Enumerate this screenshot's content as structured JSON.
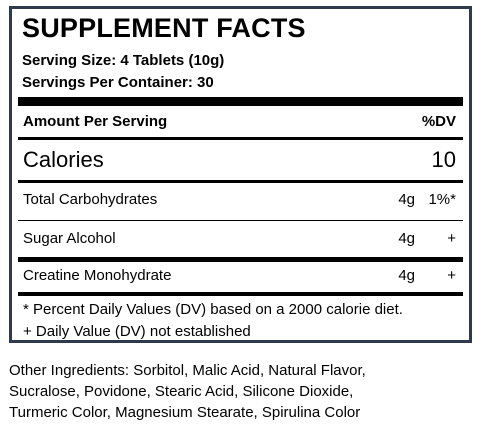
{
  "facts": {
    "title": "SUPPLEMENT FACTS",
    "serving_size": "Serving Size: 4 Tablets (10g)",
    "servings_per_container": "Servings Per Container: 30",
    "amount_header": "Amount Per Serving",
    "dv_header": "%DV",
    "calories_label": "Calories",
    "calories_value": "10",
    "nutrients": [
      {
        "name": "Total Carbohydrates",
        "amount": "4g",
        "dv": "1%*"
      },
      {
        "name": "Sugar Alcohol",
        "amount": "4g",
        "dv": "+"
      },
      {
        "name": "Creatine Monohydrate",
        "amount": "4g",
        "dv": "+"
      }
    ],
    "footnotes": [
      "* Percent Daily Values (DV) based on a 2000 calorie diet.",
      "+ Daily Value (DV) not established"
    ]
  },
  "ingredients": {
    "lines": [
      "Other Ingredients: Sorbitol, Malic Acid, Natural Flavor,",
      "Sucralose, Povidone, Stearic Acid, Silicone Dioxide,",
      "Turmeric Color, Magnesium Stearate, Spirulina Color"
    ]
  },
  "colors": {
    "border": "#2f3b4c",
    "text": "#000000",
    "background": "#ffffff"
  }
}
